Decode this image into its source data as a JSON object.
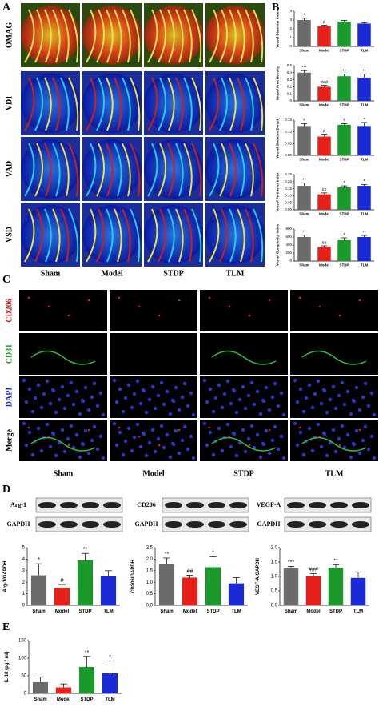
{
  "panels": {
    "A": {
      "letter": "A",
      "rows": [
        "OMAG",
        "VDI",
        "VAD",
        "VSD"
      ],
      "columns": [
        "Sham",
        "Model",
        "STDP",
        "TLM"
      ]
    },
    "B": {
      "letter": "B"
    },
    "C": {
      "letter": "C",
      "rows": [
        "CD206",
        "CD31",
        "DAPI",
        "Merge"
      ],
      "columns": [
        "Sham",
        "Model",
        "STDP",
        "TLM"
      ]
    },
    "D": {
      "letter": "D",
      "blots": [
        [
          "Arg-1",
          "GAPDH"
        ],
        [
          "CD206",
          "GAPDH"
        ],
        [
          "VEGF-A",
          "GAPDH"
        ]
      ]
    },
    "E": {
      "letter": "E"
    }
  },
  "chart_data": [
    {
      "type": "bar",
      "y_label": "Vessel Diameter Index",
      "categories": [
        "Sham",
        "Model",
        "STDP",
        "TLM"
      ],
      "values": [
        3.0,
        2.3,
        2.8,
        2.6
      ],
      "errors": [
        0.2,
        0.1,
        0.15,
        0.1
      ],
      "marks": [
        "*",
        "#",
        null,
        null
      ],
      "colors": [
        "#6b6b6b",
        "#e8201a",
        "#1a9a2a",
        "#1a2ad6"
      ],
      "ylim": [
        0,
        4
      ],
      "yticks": [
        0,
        1,
        2,
        3,
        4
      ]
    },
    {
      "type": "bar",
      "y_label": "Vessel Area Density",
      "categories": [
        "Sham",
        "Model",
        "STDP",
        "TLM"
      ],
      "values": [
        0.4,
        0.2,
        0.35,
        0.33
      ],
      "errors": [
        0.03,
        0.02,
        0.03,
        0.05
      ],
      "marks": [
        "***",
        "###",
        "**",
        "**"
      ],
      "colors": [
        "#6b6b6b",
        "#e8201a",
        "#1a9a2a",
        "#1a2ad6"
      ],
      "ylim": [
        0,
        0.5
      ],
      "yticks": [
        0,
        0.1,
        0.2,
        0.3,
        0.4,
        0.5
      ]
    },
    {
      "type": "bar",
      "y_label": "Vessel Skeleton Density",
      "categories": [
        "Sham",
        "Model",
        "STDP",
        "TLM"
      ],
      "values": [
        0.125,
        0.08,
        0.13,
        0.125
      ],
      "errors": [
        0.01,
        0.01,
        0.005,
        0.015
      ],
      "marks": [
        "*",
        "#",
        "*",
        "*"
      ],
      "colors": [
        "#6b6b6b",
        "#e8201a",
        "#1a9a2a",
        "#1a2ad6"
      ],
      "ylim": [
        0,
        0.15
      ],
      "yticks": [
        {
          "value": 0,
          "label": "0.00"
        },
        {
          "value": 0.05,
          "label": "0.05"
        },
        {
          "value": 0.1,
          "label": "0.10"
        },
        {
          "value": 0.15,
          "label": "0.15"
        }
      ]
    },
    {
      "type": "bar",
      "y_label": "Vessel Perimeter Index",
      "categories": [
        "Sham",
        "Model",
        "STDP",
        "TLM"
      ],
      "values": [
        0.17,
        0.11,
        0.16,
        0.17
      ],
      "errors": [
        0.02,
        0.01,
        0.01,
        0.01
      ],
      "marks": [
        "**",
        "##",
        "*",
        "*"
      ],
      "colors": [
        "#6b6b6b",
        "#e8201a",
        "#1a9a2a",
        "#1a2ad6"
      ],
      "ylim": [
        0,
        0.25
      ],
      "yticks": [
        {
          "value": 0,
          "label": "0.00"
        },
        {
          "value": 0.05,
          "label": "0.05"
        },
        {
          "value": 0.1,
          "label": "0.10"
        },
        {
          "value": 0.15,
          "label": "0.15"
        },
        {
          "value": 0.2,
          "label": "0.20"
        },
        {
          "value": 0.25,
          "label": "0.25"
        }
      ]
    },
    {
      "type": "bar",
      "y_label": "Vessel Complexity Index",
      "categories": [
        "Sham",
        "Model",
        "STDP",
        "TLM"
      ],
      "values": [
        600,
        350,
        520,
        600
      ],
      "errors": [
        50,
        30,
        60,
        40
      ],
      "marks": [
        "**",
        "##",
        "*",
        "**"
      ],
      "colors": [
        "#6b6b6b",
        "#e8201a",
        "#1a9a2a",
        "#1a2ad6"
      ],
      "ylim": [
        0,
        800
      ],
      "yticks": [
        0,
        200,
        400,
        600,
        800
      ]
    },
    {
      "type": "bar",
      "y_label": "Arg-1/GAPDH",
      "categories": [
        "Sham",
        "Model",
        "STDP",
        "TLM"
      ],
      "values": [
        2.6,
        1.5,
        3.9,
        2.5
      ],
      "errors": [
        1.0,
        0.3,
        0.6,
        0.5
      ],
      "marks": [
        "*",
        "#",
        "**",
        null
      ],
      "colors": [
        "#6b6b6b",
        "#e8201a",
        "#1a9a2a",
        "#1a2ad6"
      ],
      "ylim": [
        0,
        5
      ],
      "yticks": [
        0,
        1,
        2,
        3,
        4,
        5
      ]
    },
    {
      "type": "bar",
      "y_label": "CD206/GAPDH",
      "categories": [
        "Sham",
        "Model",
        "STDP",
        "TLM"
      ],
      "values": [
        1.8,
        1.2,
        1.65,
        0.95
      ],
      "errors": [
        0.25,
        0.1,
        0.45,
        0.25
      ],
      "marks": [
        "**",
        "##",
        "*",
        null
      ],
      "colors": [
        "#6b6b6b",
        "#e8201a",
        "#1a9a2a",
        "#1a2ad6"
      ],
      "ylim": [
        0,
        2.5
      ],
      "yticks": [
        {
          "value": 0,
          "label": "0.0"
        },
        {
          "value": 0.5,
          "label": "0.5"
        },
        {
          "value": 1,
          "label": "1.0"
        },
        {
          "value": 1.5,
          "label": "1.5"
        },
        {
          "value": 2,
          "label": "2.0"
        },
        {
          "value": 2.5,
          "label": "2.5"
        }
      ]
    },
    {
      "type": "bar",
      "y_label": "VEGF-A/GAPDH",
      "categories": [
        "Sham",
        "Model",
        "STDP",
        "TLM"
      ],
      "values": [
        1.3,
        1.0,
        1.3,
        0.95
      ],
      "errors": [
        0.05,
        0.1,
        0.1,
        0.2
      ],
      "marks": [
        "***",
        "###",
        "**",
        null
      ],
      "colors": [
        "#6b6b6b",
        "#e8201a",
        "#1a9a2a",
        "#1a2ad6"
      ],
      "ylim": [
        0,
        2
      ],
      "yticks": [
        {
          "value": 0,
          "label": "0.0"
        },
        {
          "value": 0.5,
          "label": "0.5"
        },
        {
          "value": 1,
          "label": "1.0"
        },
        {
          "value": 1.5,
          "label": "1.5"
        },
        {
          "value": 2,
          "label": "2.0"
        }
      ]
    },
    {
      "type": "bar",
      "y_label": "IL-10 (pg / ml)",
      "categories": [
        "Sham",
        "Model",
        "STDP",
        "TLM"
      ],
      "values": [
        32,
        17,
        75,
        57
      ],
      "errors": [
        15,
        10,
        30,
        35
      ],
      "marks": [
        null,
        null,
        "**",
        "*"
      ],
      "colors": [
        "#6b6b6b",
        "#e8201a",
        "#1a9a2a",
        "#1a2ad6"
      ],
      "ylim": [
        0,
        150
      ],
      "yticks": [
        0,
        50,
        100,
        150
      ]
    }
  ]
}
